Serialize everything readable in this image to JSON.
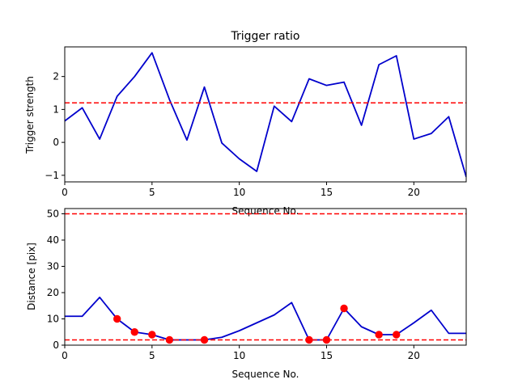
{
  "chart_data": [
    {
      "type": "line",
      "title": "Trigger ratio",
      "xlabel": "Sequence No.",
      "ylabel": "Trigger strength",
      "xlim": [
        0,
        23
      ],
      "ylim": [
        -1.2,
        2.9
      ],
      "xticks": [
        0,
        5,
        10,
        15,
        20
      ],
      "yticks": [
        -1,
        0,
        1,
        2
      ],
      "ytick_labels": [
        "−1",
        "0",
        "1",
        "2"
      ],
      "grid": false,
      "series": [
        {
          "color": "#0000cc",
          "x": [
            0,
            1,
            2,
            3,
            4,
            5,
            6,
            7,
            8,
            9,
            10,
            11,
            12,
            13,
            14,
            15,
            16,
            17,
            18,
            19,
            20,
            21,
            22,
            23
          ],
          "values": [
            0.65,
            1.05,
            0.1,
            1.4,
            2.0,
            2.72,
            1.3,
            0.07,
            1.68,
            -0.02,
            -0.5,
            -0.88,
            1.1,
            0.63,
            1.93,
            1.73,
            1.83,
            0.52,
            2.36,
            2.63,
            0.1,
            0.27,
            0.78,
            -1.05
          ]
        }
      ],
      "threshold_lines": [
        {
          "y": 1.2,
          "color": "#ff0000",
          "style": "dashed"
        }
      ]
    },
    {
      "type": "line",
      "title": "",
      "xlabel": "Sequence No.",
      "ylabel": "Distance [pix]",
      "xlim": [
        0,
        23
      ],
      "ylim": [
        0,
        52
      ],
      "xticks": [
        0,
        5,
        10,
        15,
        20
      ],
      "yticks": [
        0,
        10,
        20,
        30,
        40,
        50
      ],
      "ytick_labels": [
        "0",
        "10",
        "20",
        "30",
        "40",
        "50"
      ],
      "grid": false,
      "series": [
        {
          "color": "#0000cc",
          "x": [
            0,
            1,
            2,
            3,
            4,
            5,
            6,
            7,
            8,
            9,
            10,
            11,
            12,
            13,
            14,
            15,
            16,
            17,
            18,
            19,
            20,
            21,
            22,
            23
          ],
          "values": [
            11,
            11,
            18.2,
            10,
            5,
            4,
            2,
            2,
            2,
            3,
            5.5,
            8.5,
            11.5,
            16.2,
            2,
            2,
            14,
            7,
            4,
            4,
            8.5,
            13.3,
            4.5,
            4.5
          ]
        }
      ],
      "markers": {
        "color": "#ff0000",
        "x": [
          3,
          4,
          5,
          6,
          8,
          14,
          15,
          16,
          18,
          19
        ],
        "values": [
          10,
          5,
          4,
          2,
          2,
          2,
          2,
          14,
          4,
          4
        ]
      },
      "threshold_lines": [
        {
          "y": 50,
          "color": "#ff0000",
          "style": "dashed"
        },
        {
          "y": 2,
          "color": "#ff0000",
          "style": "dashed"
        }
      ]
    }
  ]
}
